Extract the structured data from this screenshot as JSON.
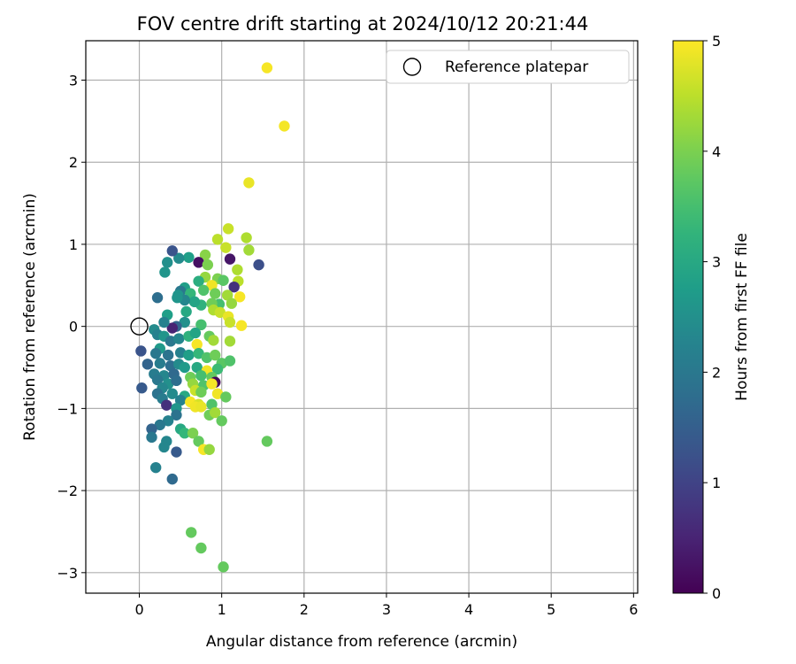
{
  "chart_data": {
    "type": "scatter",
    "title": "FOV centre drift starting at 2024/10/12 20:21:44",
    "xlabel": "Angular distance from reference (arcmin)",
    "ylabel": "Rotation from reference (arcmin)",
    "xlim": [
      -0.65,
      6.05
    ],
    "ylim": [
      -3.25,
      3.48
    ],
    "x_ticks": [
      0,
      1,
      2,
      3,
      4,
      5,
      6
    ],
    "y_ticks": [
      -3,
      -2,
      -1,
      0,
      1,
      2,
      3
    ],
    "x_tick_labels": [
      "0",
      "1",
      "2",
      "3",
      "4",
      "5",
      "6"
    ],
    "y_tick_labels": [
      "−3",
      "−2",
      "−1",
      "0",
      "1",
      "2",
      "3"
    ],
    "grid": true,
    "legend": {
      "position": "top-right",
      "label": "Reference platepar"
    },
    "reference": {
      "x": 0,
      "y": 0
    },
    "colorbar": {
      "label": "Hours from first FF file",
      "range": [
        0,
        5
      ],
      "ticks": [
        0,
        1,
        2,
        3,
        4,
        5
      ],
      "tick_labels": [
        "0",
        "1",
        "2",
        "3",
        "4",
        "5"
      ],
      "colormap": "viridis"
    },
    "points": [
      {
        "x": 1.55,
        "y": 3.15,
        "t": 4.95
      },
      {
        "x": 1.76,
        "y": 2.44,
        "t": 4.93
      },
      {
        "x": 1.33,
        "y": 1.75,
        "t": 4.85
      },
      {
        "x": 1.08,
        "y": 1.19,
        "t": 4.6
      },
      {
        "x": 0.95,
        "y": 1.06,
        "t": 4.5
      },
      {
        "x": 1.3,
        "y": 1.08,
        "t": 4.4
      },
      {
        "x": 1.05,
        "y": 0.96,
        "t": 4.6
      },
      {
        "x": 1.33,
        "y": 0.93,
        "t": 4.3
      },
      {
        "x": 0.8,
        "y": 0.87,
        "t": 4.1
      },
      {
        "x": 1.1,
        "y": 0.82,
        "t": 0.3
      },
      {
        "x": 1.45,
        "y": 0.75,
        "t": 1.2
      },
      {
        "x": 0.72,
        "y": 0.78,
        "t": 0.2
      },
      {
        "x": 0.83,
        "y": 0.75,
        "t": 4.0
      },
      {
        "x": 0.6,
        "y": 0.84,
        "t": 2.8
      },
      {
        "x": 0.48,
        "y": 0.83,
        "t": 2.4
      },
      {
        "x": 0.4,
        "y": 0.92,
        "t": 1.3
      },
      {
        "x": 0.34,
        "y": 0.78,
        "t": 2.5
      },
      {
        "x": 0.31,
        "y": 0.66,
        "t": 2.6
      },
      {
        "x": 1.19,
        "y": 0.69,
        "t": 4.4
      },
      {
        "x": 0.8,
        "y": 0.6,
        "t": 4.2
      },
      {
        "x": 0.95,
        "y": 0.58,
        "t": 4.0
      },
      {
        "x": 1.02,
        "y": 0.56,
        "t": 3.7
      },
      {
        "x": 1.2,
        "y": 0.55,
        "t": 4.5
      },
      {
        "x": 1.15,
        "y": 0.48,
        "t": 0.7
      },
      {
        "x": 0.88,
        "y": 0.5,
        "t": 4.9
      },
      {
        "x": 0.72,
        "y": 0.55,
        "t": 3.1
      },
      {
        "x": 0.55,
        "y": 0.47,
        "t": 2.8
      },
      {
        "x": 0.5,
        "y": 0.43,
        "t": 2.0
      },
      {
        "x": 0.47,
        "y": 0.38,
        "t": 2.6
      },
      {
        "x": 0.62,
        "y": 0.4,
        "t": 3.3
      },
      {
        "x": 0.78,
        "y": 0.44,
        "t": 3.6
      },
      {
        "x": 0.92,
        "y": 0.4,
        "t": 3.9
      },
      {
        "x": 1.07,
        "y": 0.38,
        "t": 4.3
      },
      {
        "x": 1.22,
        "y": 0.36,
        "t": 4.95
      },
      {
        "x": 1.12,
        "y": 0.28,
        "t": 4.2
      },
      {
        "x": 0.97,
        "y": 0.27,
        "t": 3.5
      },
      {
        "x": 0.88,
        "y": 0.28,
        "t": 3.9
      },
      {
        "x": 0.75,
        "y": 0.26,
        "t": 3.2
      },
      {
        "x": 0.67,
        "y": 0.3,
        "t": 2.9
      },
      {
        "x": 0.55,
        "y": 0.32,
        "t": 2.3
      },
      {
        "x": 0.46,
        "y": 0.35,
        "t": 2.6
      },
      {
        "x": 0.22,
        "y": 0.35,
        "t": 1.8
      },
      {
        "x": 0.34,
        "y": 0.14,
        "t": 2.8
      },
      {
        "x": 0.57,
        "y": 0.18,
        "t": 3.0
      },
      {
        "x": 0.9,
        "y": 0.2,
        "t": 4.4
      },
      {
        "x": 0.98,
        "y": 0.17,
        "t": 4.6
      },
      {
        "x": 1.08,
        "y": 0.12,
        "t": 4.85
      },
      {
        "x": 1.1,
        "y": 0.05,
        "t": 4.6
      },
      {
        "x": 1.24,
        "y": 0.01,
        "t": 4.95
      },
      {
        "x": 0.75,
        "y": 0.02,
        "t": 3.5
      },
      {
        "x": 0.55,
        "y": 0.05,
        "t": 2.5
      },
      {
        "x": 0.45,
        "y": 0.0,
        "t": 1.6
      },
      {
        "x": 0.4,
        "y": -0.02,
        "t": 0.5
      },
      {
        "x": 0.3,
        "y": 0.05,
        "t": 2.2
      },
      {
        "x": 0.18,
        "y": -0.04,
        "t": 2.4
      },
      {
        "x": 0.22,
        "y": -0.1,
        "t": 2.2
      },
      {
        "x": 0.3,
        "y": -0.12,
        "t": 2.6
      },
      {
        "x": 0.38,
        "y": -0.18,
        "t": 2.0
      },
      {
        "x": 0.48,
        "y": -0.15,
        "t": 2.3
      },
      {
        "x": 0.6,
        "y": -0.12,
        "t": 3.2
      },
      {
        "x": 0.68,
        "y": -0.08,
        "t": 2.9
      },
      {
        "x": 0.85,
        "y": -0.12,
        "t": 3.8
      },
      {
        "x": 0.9,
        "y": -0.17,
        "t": 4.3
      },
      {
        "x": 1.1,
        "y": -0.18,
        "t": 4.3
      },
      {
        "x": 0.7,
        "y": -0.22,
        "t": 4.95
      },
      {
        "x": 0.25,
        "y": -0.27,
        "t": 2.7
      },
      {
        "x": 0.02,
        "y": -0.3,
        "t": 1.3
      },
      {
        "x": 0.2,
        "y": -0.33,
        "t": 2.0
      },
      {
        "x": 0.35,
        "y": -0.35,
        "t": 1.9
      },
      {
        "x": 0.5,
        "y": -0.32,
        "t": 2.2
      },
      {
        "x": 0.6,
        "y": -0.35,
        "t": 2.8
      },
      {
        "x": 0.72,
        "y": -0.33,
        "t": 3.3
      },
      {
        "x": 0.82,
        "y": -0.38,
        "t": 3.6
      },
      {
        "x": 0.92,
        "y": -0.35,
        "t": 3.9
      },
      {
        "x": 1.0,
        "y": -0.45,
        "t": 3.7
      },
      {
        "x": 1.1,
        "y": -0.42,
        "t": 3.6
      },
      {
        "x": 0.1,
        "y": -0.46,
        "t": 1.6
      },
      {
        "x": 0.25,
        "y": -0.45,
        "t": 2.1
      },
      {
        "x": 0.38,
        "y": -0.48,
        "t": 1.8
      },
      {
        "x": 0.48,
        "y": -0.46,
        "t": 2.4
      },
      {
        "x": 0.55,
        "y": -0.5,
        "t": 2.7
      },
      {
        "x": 0.7,
        "y": -0.5,
        "t": 3.0
      },
      {
        "x": 0.82,
        "y": -0.54,
        "t": 4.9
      },
      {
        "x": 0.95,
        "y": -0.52,
        "t": 3.4
      },
      {
        "x": 0.18,
        "y": -0.58,
        "t": 2.1
      },
      {
        "x": 0.3,
        "y": -0.6,
        "t": 2.3
      },
      {
        "x": 0.42,
        "y": -0.58,
        "t": 1.7
      },
      {
        "x": 0.62,
        "y": -0.62,
        "t": 3.9
      },
      {
        "x": 0.75,
        "y": -0.6,
        "t": 3.5
      },
      {
        "x": 0.88,
        "y": -0.62,
        "t": 3.8
      },
      {
        "x": 0.22,
        "y": -0.65,
        "t": 2.0
      },
      {
        "x": 0.35,
        "y": -0.7,
        "t": 2.5
      },
      {
        "x": 0.45,
        "y": -0.66,
        "t": 1.8
      },
      {
        "x": 0.65,
        "y": -0.7,
        "t": 4.2
      },
      {
        "x": 0.78,
        "y": -0.72,
        "t": 3.6
      },
      {
        "x": 0.92,
        "y": -0.68,
        "t": 0.1
      },
      {
        "x": 0.88,
        "y": -0.7,
        "t": 4.95
      },
      {
        "x": 0.03,
        "y": -0.75,
        "t": 1.4
      },
      {
        "x": 0.28,
        "y": -0.75,
        "t": 2.3
      },
      {
        "x": 0.68,
        "y": -0.78,
        "t": 4.6
      },
      {
        "x": 0.75,
        "y": -0.8,
        "t": 3.9
      },
      {
        "x": 0.95,
        "y": -0.82,
        "t": 4.9
      },
      {
        "x": 1.05,
        "y": -0.86,
        "t": 3.8
      },
      {
        "x": 0.22,
        "y": -0.82,
        "t": 1.9
      },
      {
        "x": 0.4,
        "y": -0.82,
        "t": 2.4
      },
      {
        "x": 0.55,
        "y": -0.85,
        "t": 3.0
      },
      {
        "x": 0.28,
        "y": -0.88,
        "t": 2.1
      },
      {
        "x": 0.5,
        "y": -0.9,
        "t": 2.2
      },
      {
        "x": 0.62,
        "y": -0.92,
        "t": 4.95
      },
      {
        "x": 0.72,
        "y": -0.95,
        "t": 4.7
      },
      {
        "x": 0.88,
        "y": -0.95,
        "t": 3.6
      },
      {
        "x": 0.33,
        "y": -0.96,
        "t": 0.7
      },
      {
        "x": 0.45,
        "y": -1.0,
        "t": 2.6
      },
      {
        "x": 0.68,
        "y": -0.98,
        "t": 4.9
      },
      {
        "x": 0.75,
        "y": -0.98,
        "t": 4.85
      },
      {
        "x": 0.85,
        "y": -1.08,
        "t": 3.9
      },
      {
        "x": 0.92,
        "y": -1.05,
        "t": 4.3
      },
      {
        "x": 1.0,
        "y": -1.15,
        "t": 3.8
      },
      {
        "x": 0.45,
        "y": -1.08,
        "t": 1.9
      },
      {
        "x": 0.35,
        "y": -1.15,
        "t": 2.2
      },
      {
        "x": 0.25,
        "y": -1.2,
        "t": 2.0
      },
      {
        "x": 0.15,
        "y": -1.25,
        "t": 1.6
      },
      {
        "x": 0.5,
        "y": -1.25,
        "t": 3.0
      },
      {
        "x": 0.55,
        "y": -1.3,
        "t": 3.3
      },
      {
        "x": 0.65,
        "y": -1.3,
        "t": 4.0
      },
      {
        "x": 0.15,
        "y": -1.35,
        "t": 2.0
      },
      {
        "x": 0.33,
        "y": -1.4,
        "t": 2.3
      },
      {
        "x": 0.3,
        "y": -1.47,
        "t": 2.3
      },
      {
        "x": 0.72,
        "y": -1.4,
        "t": 3.8
      },
      {
        "x": 0.45,
        "y": -1.53,
        "t": 1.4
      },
      {
        "x": 0.78,
        "y": -1.5,
        "t": 4.95
      },
      {
        "x": 0.85,
        "y": -1.5,
        "t": 4.2
      },
      {
        "x": 1.55,
        "y": -1.4,
        "t": 3.8
      },
      {
        "x": 0.2,
        "y": -1.72,
        "t": 2.2
      },
      {
        "x": 0.4,
        "y": -1.86,
        "t": 1.7
      },
      {
        "x": 0.63,
        "y": -2.51,
        "t": 3.8
      },
      {
        "x": 0.75,
        "y": -2.7,
        "t": 3.8
      },
      {
        "x": 1.02,
        "y": -2.93,
        "t": 3.8
      }
    ]
  }
}
